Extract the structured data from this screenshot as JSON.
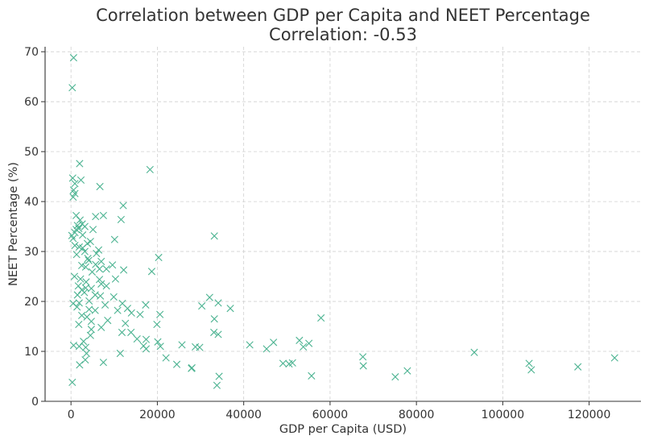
{
  "chart_data": {
    "type": "scatter",
    "title": "Correlation between GDP per Capita and NEET Percentage",
    "subtitle": "Correlation: -0.53",
    "xlabel": "GDP per Capita (USD)",
    "ylabel": "NEET Percentage (%)",
    "xlim": [
      -6000,
      132000
    ],
    "ylim": [
      0,
      71
    ],
    "xticks": [
      0,
      20000,
      40000,
      60000,
      80000,
      100000,
      120000
    ],
    "yticks": [
      0,
      10,
      20,
      30,
      40,
      50,
      60,
      70
    ],
    "grid": true,
    "marker": "x",
    "marker_color": "#4cb391",
    "points": [
      [
        600,
        68.8
      ],
      [
        300,
        62.8
      ],
      [
        2000,
        47.6
      ],
      [
        18300,
        46.4
      ],
      [
        400,
        44.7
      ],
      [
        2300,
        44.3
      ],
      [
        900,
        43.6
      ],
      [
        6700,
        43.0
      ],
      [
        600,
        42.3
      ],
      [
        900,
        41.6
      ],
      [
        500,
        40.9
      ],
      [
        12100,
        39.2
      ],
      [
        1200,
        37.2
      ],
      [
        7500,
        37.2
      ],
      [
        5700,
        37.0
      ],
      [
        2100,
        36.3
      ],
      [
        11600,
        36.4
      ],
      [
        2600,
        35.5
      ],
      [
        1500,
        35.2
      ],
      [
        3200,
        35.0
      ],
      [
        1800,
        34.6
      ],
      [
        1200,
        34.4
      ],
      [
        5100,
        34.4
      ],
      [
        900,
        33.8
      ],
      [
        200,
        33.2
      ],
      [
        33200,
        33.1
      ],
      [
        2700,
        33.3
      ],
      [
        500,
        32.6
      ],
      [
        4500,
        32.0
      ],
      [
        10100,
        32.4
      ],
      [
        3800,
        31.6
      ],
      [
        900,
        31.2
      ],
      [
        1900,
        30.9
      ],
      [
        2700,
        30.7
      ],
      [
        6400,
        30.3
      ],
      [
        3200,
        30.0
      ],
      [
        5900,
        29.6
      ],
      [
        1300,
        29.4
      ],
      [
        3900,
        28.6
      ],
      [
        20300,
        28.8
      ],
      [
        4100,
        28.2
      ],
      [
        7000,
        28.0
      ],
      [
        5700,
        27.4
      ],
      [
        9600,
        27.3
      ],
      [
        2500,
        27.2
      ],
      [
        3400,
        26.9
      ],
      [
        6600,
        26.5
      ],
      [
        8200,
        26.5
      ],
      [
        12200,
        26.3
      ],
      [
        18700,
        26.0
      ],
      [
        4900,
        25.9
      ],
      [
        800,
        25.0
      ],
      [
        2200,
        24.5
      ],
      [
        6600,
        24.4
      ],
      [
        10300,
        24.5
      ],
      [
        3500,
        23.9
      ],
      [
        7000,
        23.5
      ],
      [
        1700,
        23.1
      ],
      [
        8200,
        23.1
      ],
      [
        3400,
        22.7
      ],
      [
        4700,
        22.6
      ],
      [
        2500,
        22.3
      ],
      [
        3100,
        21.8
      ],
      [
        1500,
        21.3
      ],
      [
        5600,
        21.3
      ],
      [
        6800,
        21.1
      ],
      [
        9900,
        20.9
      ],
      [
        32100,
        20.8
      ],
      [
        4200,
        20.1
      ],
      [
        1900,
        19.7
      ],
      [
        11900,
        19.6
      ],
      [
        17300,
        19.3
      ],
      [
        30300,
        19.1
      ],
      [
        7900,
        19.3
      ],
      [
        500,
        19.6
      ],
      [
        1400,
        18.9
      ],
      [
        34100,
        19.7
      ],
      [
        13100,
        18.6
      ],
      [
        36900,
        18.6
      ],
      [
        4200,
        18.4
      ],
      [
        10800,
        18.2
      ],
      [
        5600,
        18.2
      ],
      [
        14000,
        17.7
      ],
      [
        16000,
        17.4
      ],
      [
        2500,
        17.2
      ],
      [
        20600,
        17.4
      ],
      [
        3700,
        16.9
      ],
      [
        33200,
        16.5
      ],
      [
        57900,
        16.7
      ],
      [
        4700,
        16.0
      ],
      [
        8500,
        16.2
      ],
      [
        12600,
        15.6
      ],
      [
        1800,
        15.4
      ],
      [
        19900,
        15.4
      ],
      [
        7000,
        14.8
      ],
      [
        4700,
        14.4
      ],
      [
        11800,
        13.8
      ],
      [
        13900,
        13.8
      ],
      [
        33100,
        13.8
      ],
      [
        34100,
        13.4
      ],
      [
        4500,
        13.2
      ],
      [
        15300,
        12.5
      ],
      [
        17400,
        12.4
      ],
      [
        2900,
        12.0
      ],
      [
        52900,
        12.2
      ],
      [
        20100,
        11.9
      ],
      [
        55100,
        11.6
      ],
      [
        46900,
        11.8
      ],
      [
        25700,
        11.3
      ],
      [
        41400,
        11.3
      ],
      [
        600,
        11.2
      ],
      [
        16800,
        11.1
      ],
      [
        1900,
        11.0
      ],
      [
        20700,
        11.0
      ],
      [
        28800,
        10.9
      ],
      [
        29800,
        10.8
      ],
      [
        3400,
        10.8
      ],
      [
        45300,
        10.5
      ],
      [
        53800,
        10.9
      ],
      [
        17400,
        10.5
      ],
      [
        11400,
        9.6
      ],
      [
        3600,
        9.6
      ],
      [
        93400,
        9.8
      ],
      [
        67600,
        8.9
      ],
      [
        125900,
        8.7
      ],
      [
        22000,
        8.7
      ],
      [
        3300,
        8.3
      ],
      [
        106100,
        7.6
      ],
      [
        7500,
        7.8
      ],
      [
        49100,
        7.6
      ],
      [
        50500,
        7.5
      ],
      [
        51300,
        7.7
      ],
      [
        24500,
        7.4
      ],
      [
        2000,
        7.3
      ],
      [
        67700,
        7.1
      ],
      [
        28000,
        6.7
      ],
      [
        117400,
        6.9
      ],
      [
        27900,
        6.6
      ],
      [
        106600,
        6.3
      ],
      [
        77900,
        6.1
      ],
      [
        34300,
        5.0
      ],
      [
        55700,
        5.1
      ],
      [
        75100,
        4.9
      ],
      [
        300,
        3.8
      ],
      [
        33800,
        3.2
      ]
    ]
  }
}
